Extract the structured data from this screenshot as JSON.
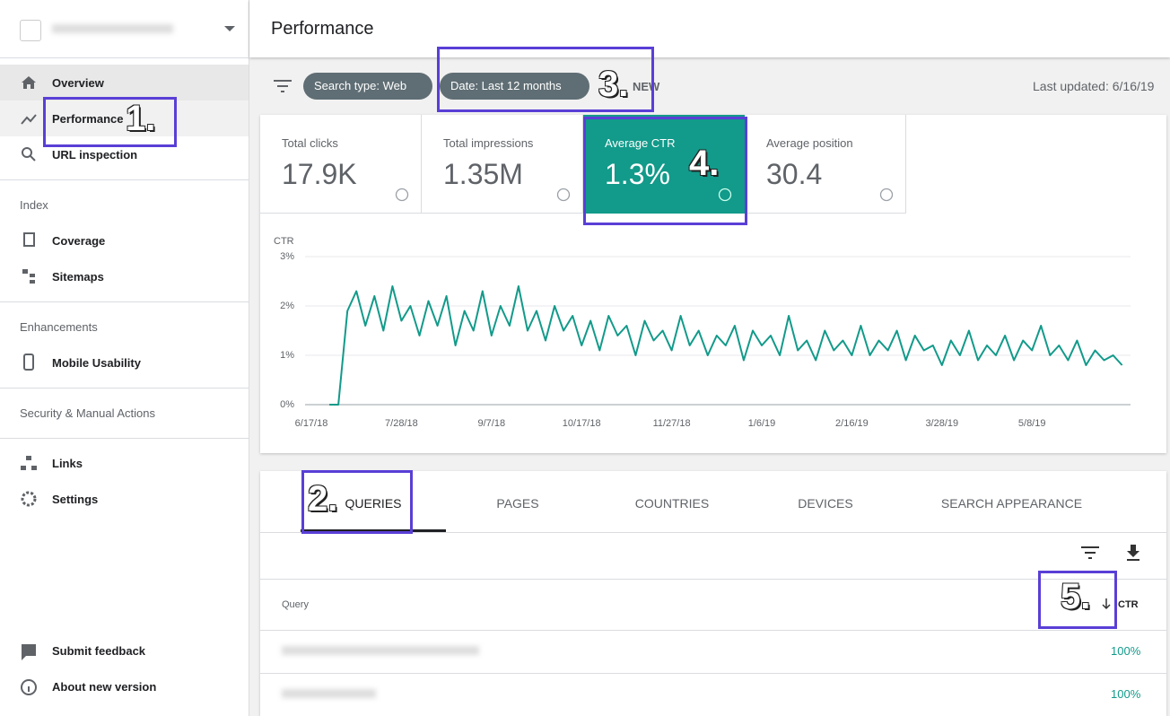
{
  "header": {
    "title": "Performance",
    "last_updated": "Last updated: 6/16/19"
  },
  "filters": [
    "Search type: Web",
    "Date: Last 12 months",
    "NEW"
  ],
  "nav": [
    "Overview",
    "Performance",
    "URL inspection",
    "Index",
    "Coverage",
    "Sitemaps",
    "Enhancements",
    "Mobile Usability",
    "Security & Manual Actions",
    "Links",
    "Settings",
    "Submit feedback",
    "About new version"
  ],
  "metrics": [
    {
      "label": "Total clicks",
      "value": "17.9K"
    },
    {
      "label": "Total impressions",
      "value": "1.35M"
    },
    {
      "label": "Average CTR",
      "value": "1.3%"
    },
    {
      "label": "Average position",
      "value": "30.4"
    }
  ],
  "tabs": [
    "QUERIES",
    "PAGES",
    "COUNTRIES",
    "DEVICES",
    "SEARCH APPEARANCE"
  ],
  "table": {
    "columns": [
      "Query",
      "CTR"
    ],
    "rows": [
      {
        "ctr": "100%"
      },
      {
        "ctr": "100%"
      }
    ]
  },
  "annotations": [
    "1.",
    "2.",
    "3.",
    "4.",
    "5."
  ],
  "chart_data": {
    "type": "line",
    "y_label": "CTR",
    "color": "#129a8a",
    "ylim": [
      0,
      3
    ],
    "yticks": [
      {
        "value": 0,
        "label": "0%"
      },
      {
        "value": 1,
        "label": "1%"
      },
      {
        "value": 2,
        "label": "2%"
      },
      {
        "value": 3,
        "label": "3%"
      }
    ],
    "grid": true,
    "categories": [
      "6/17/18",
      null,
      null,
      null,
      null,
      null,
      null,
      null,
      null,
      null,
      "7/28/18",
      null,
      null,
      null,
      null,
      null,
      null,
      null,
      null,
      null,
      "9/7/18",
      null,
      null,
      null,
      null,
      null,
      null,
      null,
      null,
      null,
      "10/17/18",
      null,
      null,
      null,
      null,
      null,
      null,
      null,
      null,
      null,
      "11/27/18",
      null,
      null,
      null,
      null,
      null,
      null,
      null,
      null,
      null,
      "1/6/19",
      null,
      null,
      null,
      null,
      null,
      null,
      null,
      null,
      null,
      "2/16/19",
      null,
      null,
      null,
      null,
      null,
      null,
      null,
      null,
      null,
      "3/28/19",
      null,
      null,
      null,
      null,
      null,
      null,
      null,
      null,
      null,
      "5/8/19",
      null,
      null,
      null,
      null,
      null,
      null,
      null,
      null,
      null,
      null
    ],
    "values": [
      null,
      null,
      0,
      0,
      1.9,
      2.3,
      1.6,
      2.2,
      1.5,
      2.4,
      1.7,
      2.0,
      1.4,
      2.1,
      1.6,
      2.2,
      1.2,
      1.9,
      1.5,
      2.3,
      1.4,
      2.0,
      1.6,
      2.4,
      1.5,
      1.9,
      1.3,
      2.0,
      1.5,
      1.8,
      1.2,
      1.7,
      1.1,
      1.8,
      1.4,
      1.6,
      1.0,
      1.7,
      1.3,
      1.5,
      1.1,
      1.8,
      1.2,
      1.5,
      1.0,
      1.4,
      1.2,
      1.6,
      0.9,
      1.5,
      1.2,
      1.4,
      1.0,
      1.8,
      1.1,
      1.3,
      0.9,
      1.5,
      1.1,
      1.3,
      1.0,
      1.6,
      1.0,
      1.3,
      1.1,
      1.5,
      0.9,
      1.4,
      1.1,
      1.2,
      0.8,
      1.3,
      1.0,
      1.5,
      0.9,
      1.2,
      1.0,
      1.4,
      0.9,
      1.3,
      1.1,
      1.6,
      1.0,
      1.2,
      0.9,
      1.3,
      0.8,
      1.1,
      0.9,
      1.0,
      0.8
    ]
  }
}
